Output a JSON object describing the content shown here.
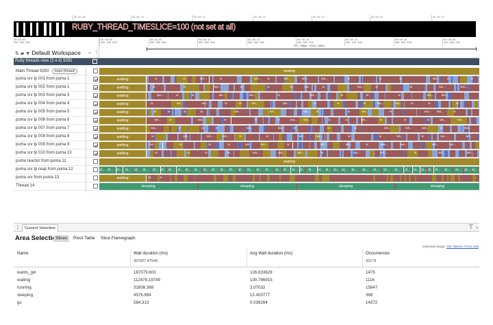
{
  "top_ruler": {
    "ticks": [
      "00:00:00",
      "00:00:10",
      "00:00:15",
      "00:00:20",
      "00:00:25",
      "00:00:30",
      "00:00:33"
    ]
  },
  "banner": {
    "text": "RUBY_THREAD_TIMESLICE=100 (not set at all)"
  },
  "workspace": {
    "time_top": "00:00:00",
    "time_bottom": "000 000 000",
    "title": "Default Workspace",
    "caret_icon": "chevron-down-icon",
    "menu_icon": "kebab-icon"
  },
  "timeline": {
    "ticks": [
      {
        "t": "00:00:00",
        "ns": "000 000 000"
      },
      {
        "t": "00:00:05",
        "ns": "000 000 000"
      },
      {
        "t": "00:00:10",
        "ns": "000 000 000"
      },
      {
        "t": "00:00:15",
        "ns": "000 000 000"
      },
      {
        "t": "00:00:20",
        "ns": "000 000 000"
      },
      {
        "t": "00:00:25",
        "ns": "000 000 000"
      },
      {
        "t": "00:00:30",
        "ns": "000 000 000"
      },
      {
        "t": "00:00:00",
        "ns": "000 000 000"
      }
    ],
    "selection_label": "33s 750ms 747us 549ns"
  },
  "group": {
    "title": "Ruby threads view (3.4.4) 9250"
  },
  "tracks": [
    {
      "name": "Main Thread 9250",
      "pill": "main thread",
      "checked": false,
      "kind": "main"
    },
    {
      "name": "puma srv tp 001 from puma 1",
      "checked": true,
      "kind": "pool"
    },
    {
      "name": "puma srv tp 002 from puma 1",
      "checked": true,
      "kind": "pool"
    },
    {
      "name": "puma srv tp 003 from puma 3",
      "checked": true,
      "kind": "pool"
    },
    {
      "name": "puma srv tp 004 from puma 4",
      "checked": true,
      "kind": "pool"
    },
    {
      "name": "puma srv tp 005 from puma 5",
      "checked": true,
      "kind": "pool"
    },
    {
      "name": "puma srv tp 006 from puma 6",
      "checked": true,
      "kind": "pool"
    },
    {
      "name": "puma srv tp 007 from puma 7",
      "checked": true,
      "kind": "pool"
    },
    {
      "name": "puma srv tp 008 from puma 8",
      "checked": true,
      "kind": "pool"
    },
    {
      "name": "puma srv tp 009 from puma 9",
      "checked": true,
      "kind": "pool"
    },
    {
      "name": "puma srv tp 010 from puma 10",
      "checked": true,
      "kind": "pool"
    },
    {
      "name": "puma reactor from puma 11",
      "checked": false,
      "kind": "reactor"
    },
    {
      "name": "puma srv tp reap from puma 12",
      "checked": false,
      "kind": "reap"
    },
    {
      "name": "puma srv from puma 13",
      "checked": false,
      "kind": "srv"
    },
    {
      "name": "Thread 14",
      "checked": false,
      "kind": "thread14"
    }
  ],
  "slice_text": {
    "waiting": "waiting",
    "waiting_short": "w",
    "wa": "wa...",
    "ws": "ws...",
    "sl": "sl...",
    "sleeping": "sleeping"
  },
  "colors": {
    "waiting": "#a2892a",
    "running": "#9c5a5a",
    "wants_gvl": "#8aa6d8",
    "sleeping": "#3f9b72",
    "gc": "#5e6ec2",
    "group_header": "#3d4f63"
  },
  "panel": {
    "tab": "Current Selection",
    "title": "Area Selection",
    "subtabs": [
      "Slices",
      "Pivot Table",
      "Slice Flamegraph"
    ],
    "selected_range_label": "Selected range:",
    "selected_range_value": "33s 750ms 747us 549"
  },
  "table": {
    "columns": [
      "Name",
      "Wall duration (ms)",
      "Avg Wall duration (ms)",
      "Occurrences"
    ],
    "totals": [
      "",
      "337507.47549",
      "",
      "33179"
    ],
    "rows": [
      [
        "wants_gvl",
        "187079.603",
        "126.833629",
        "1475"
      ],
      [
        "waiting",
        "112478.19749",
        "100.786915",
        "1116"
      ],
      [
        "running",
        "32808.368",
        "2.07032",
        "15847"
      ],
      [
        "sleeping",
        "4576.994",
        "12.403777",
        "369"
      ],
      [
        "gc",
        "564.313",
        "0.039264",
        "14372"
      ]
    ]
  }
}
